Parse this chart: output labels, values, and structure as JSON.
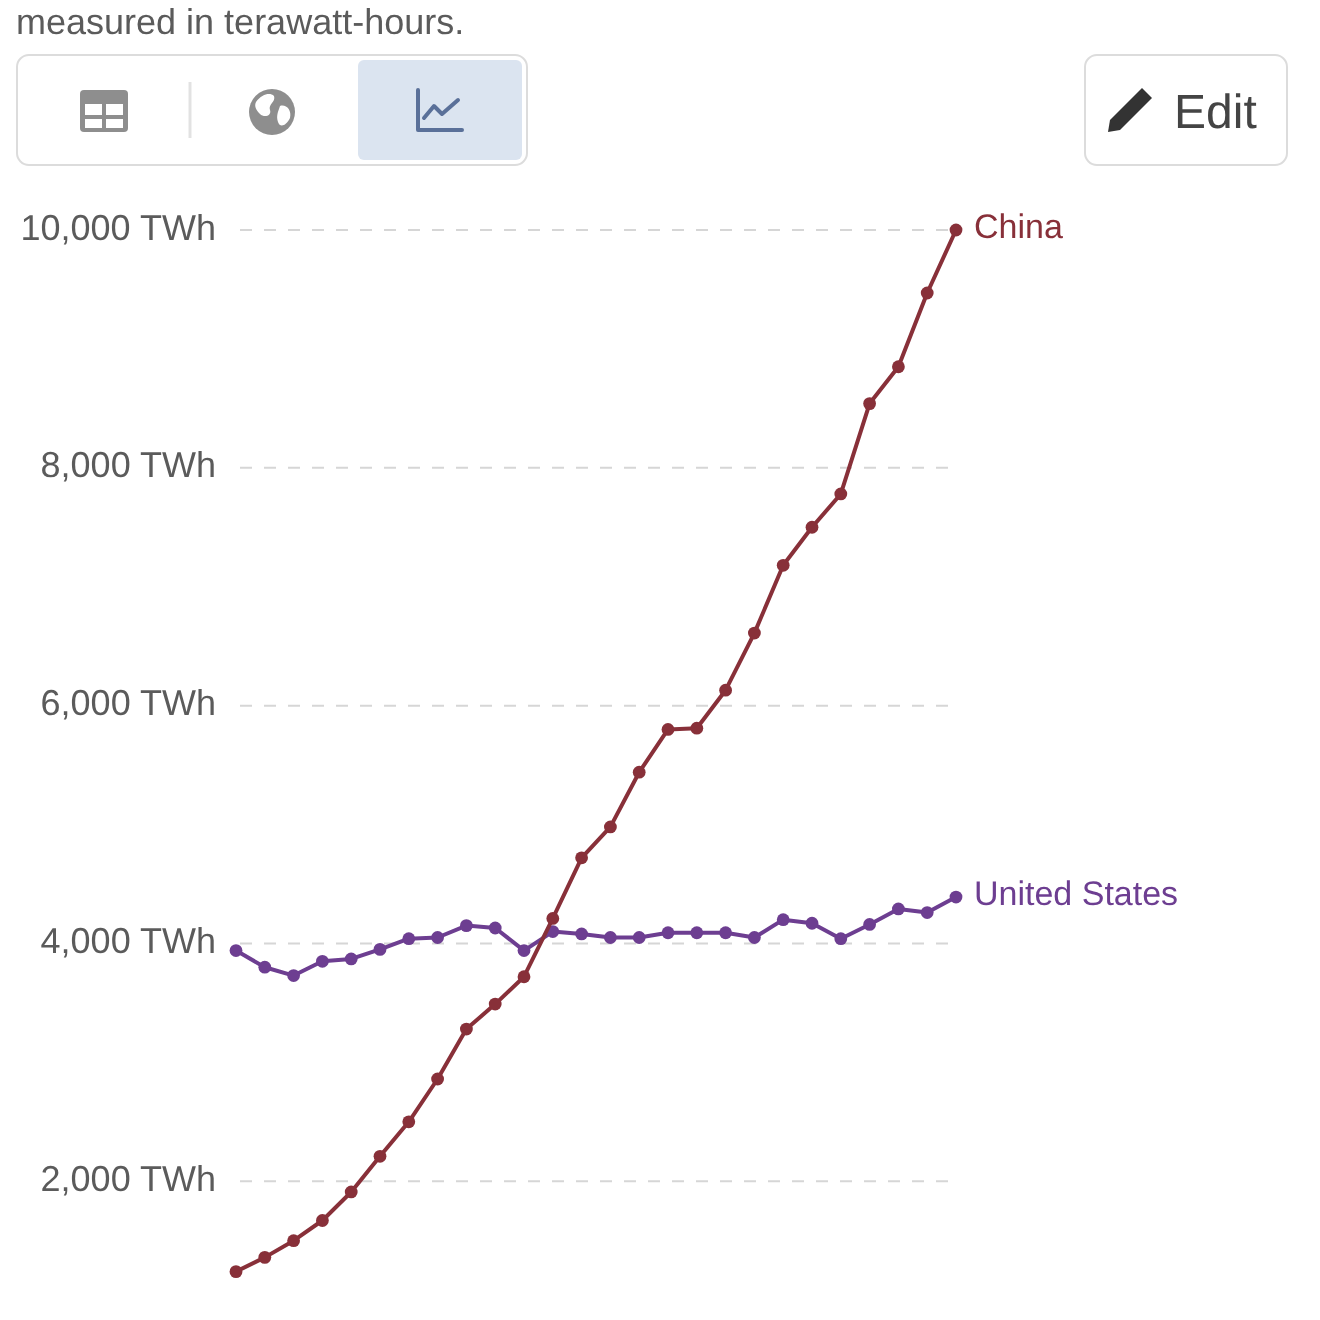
{
  "chart_data": {
    "type": "line",
    "subtitle": "measured in terawatt-hours.",
    "annotations": [
      "Edit"
    ],
    "categories": [
      null,
      null,
      null,
      null,
      null,
      null,
      null,
      null,
      null,
      null,
      null,
      null,
      null,
      null,
      null,
      null,
      null,
      null,
      null,
      null,
      null,
      null,
      null,
      null,
      null,
      null
    ],
    "series": [
      {
        "name": "China",
        "color": "#883039",
        "values": [
          1240,
          1360,
          1500,
          1670,
          1910,
          2210,
          2500,
          2860,
          3280,
          3490,
          3720,
          4210,
          4720,
          4980,
          5440,
          5800,
          5810,
          6130,
          6610,
          7180,
          7500,
          7780,
          8540,
          8850,
          9470,
          10000
        ]
      },
      {
        "name": "United States",
        "color": "#6d3e91",
        "values": [
          3940,
          3800,
          3730,
          3850,
          3870,
          3950,
          4040,
          4050,
          4150,
          4130,
          3940,
          4100,
          4080,
          4050,
          4050,
          4090,
          4090,
          4090,
          4050,
          4200,
          4170,
          4040,
          4160,
          4290,
          4260,
          4390
        ]
      }
    ],
    "ylim": [
      850,
      10000
    ],
    "yticks": [
      {
        "value": 2000,
        "label": "2,000 TWh"
      },
      {
        "value": 4000,
        "label": "4,000 TWh"
      },
      {
        "value": 6000,
        "label": "6,000 TWh"
      },
      {
        "value": 8000,
        "label": "8,000 TWh"
      },
      {
        "value": 10000,
        "label": "10,000 TWh"
      }
    ],
    "grid": "y",
    "marker": "circle",
    "line_style": "solid",
    "tick_labels": "y"
  }
}
